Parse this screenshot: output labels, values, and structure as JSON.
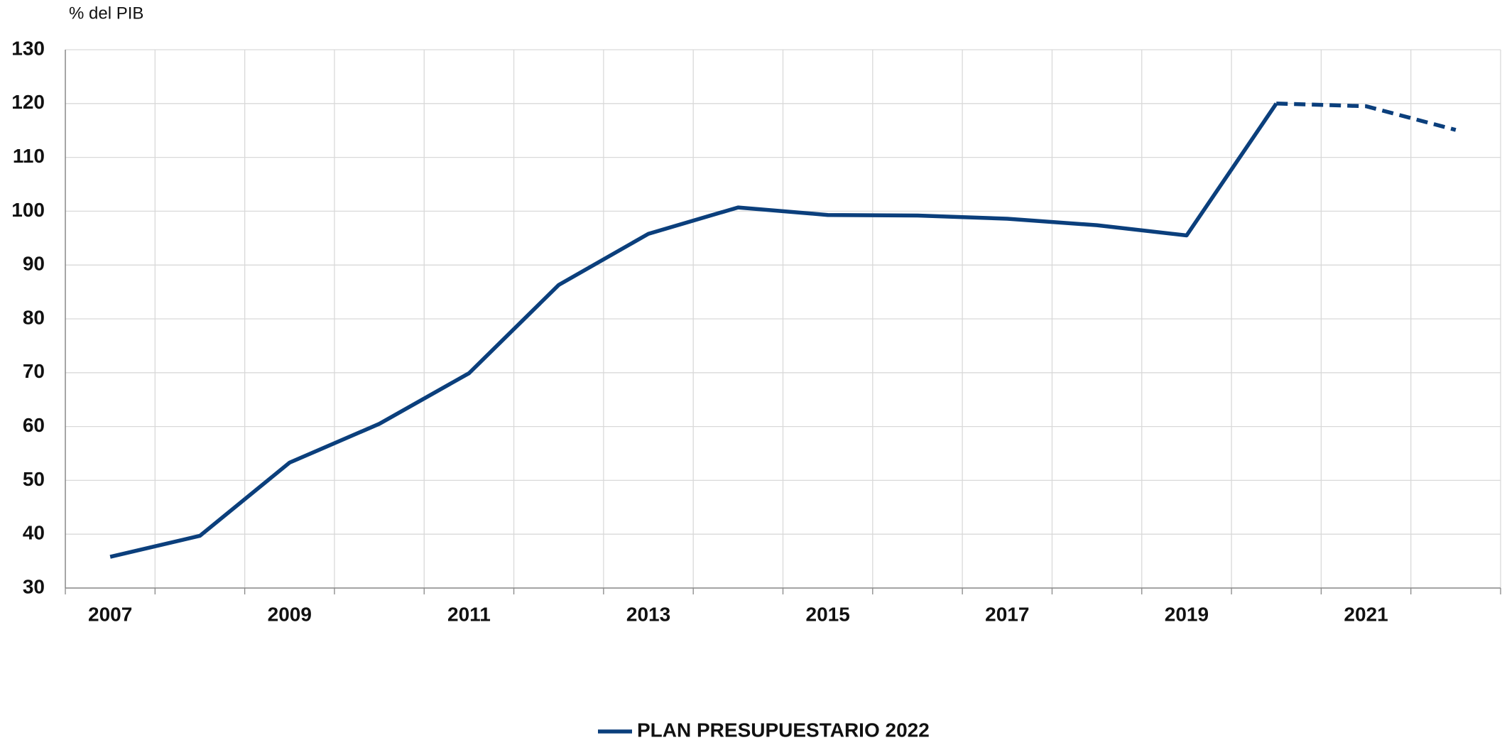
{
  "chart_data": {
    "type": "line",
    "y_label": "% del PIB",
    "x": [
      2007,
      2008,
      2009,
      2010,
      2011,
      2012,
      2013,
      2014,
      2015,
      2016,
      2017,
      2018,
      2019,
      2020,
      2021,
      2022
    ],
    "series": [
      {
        "name": "PLAN PRESUPUESTARIO 2022",
        "color": "#0b3f7c",
        "values": [
          35.8,
          39.7,
          53.3,
          60.5,
          69.9,
          86.3,
          95.8,
          100.7,
          99.3,
          99.2,
          98.6,
          97.4,
          95.5,
          120.0,
          119.5,
          115.1
        ],
        "dashed_from": 2020
      }
    ],
    "xlim": [
      2006.5,
      2022.5
    ],
    "xticks": [
      2007,
      2009,
      2011,
      2013,
      2015,
      2017,
      2019,
      2021
    ],
    "ylim": [
      30,
      130
    ],
    "yticks": [
      30,
      40,
      50,
      60,
      70,
      80,
      90,
      100,
      110,
      120,
      130
    ],
    "grid": true
  }
}
